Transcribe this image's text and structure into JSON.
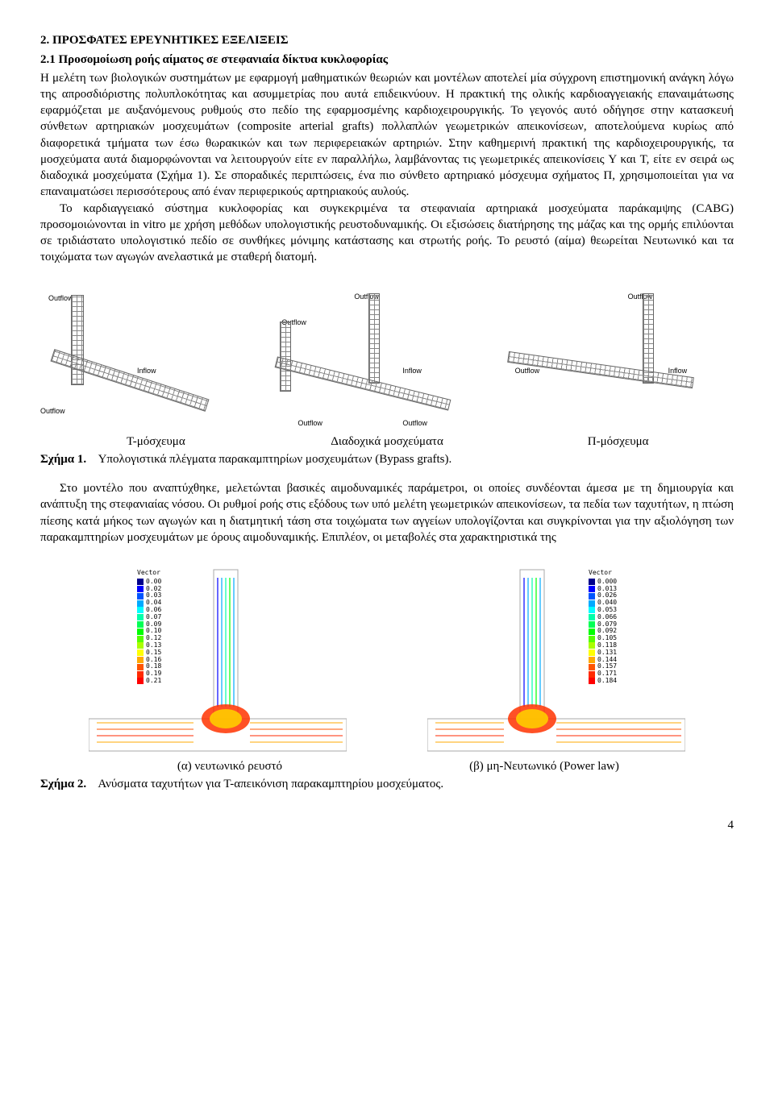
{
  "section": {
    "title": "2. ΠΡΟΣΦΑΤΕΣ ΕΡΕΥΝΗΤΙΚΕΣ ΕΞΕΛΙΞΕΙΣ",
    "subsection_title": "2.1 Προσομοίωση ροής αίματος σε στεφανιαία δίκτυα κυκλοφορίας"
  },
  "para1": "Η μελέτη των βιολογικών συστημάτων με εφαρμογή μαθηματικών θεωριών και μοντέλων αποτελεί μία σύγχρονη επιστημονική ανάγκη λόγω της απροσδιόριστης πολυπλοκότητας και ασυμμετρίας που αυτά επιδεικνύουν. Η πρακτική της ολικής καρδιοαγγειακής επαναιμάτωσης εφαρμόζεται με αυξανόμενους ρυθμούς στο πεδίο της εφαρμοσμένης καρδιοχειρουργικής. Το γεγονός αυτό οδήγησε στην κατασκευή σύνθετων αρτηριακών μοσχευμάτων (composite arterial grafts) πολλαπλών γεωμετρικών απεικονίσεων, αποτελούμενα κυρίως από διαφορετικά τμήματα των έσω θωρακικών και των περιφερειακών αρτηριών. Στην καθημερινή πρακτική της καρδιοχειρουργικής, τα μοσχεύματα αυτά διαμορφώνονται να λειτουργούν είτε εν παραλλήλω, λαμβάνοντας τις γεωμετρικές απεικονίσεις Y και T, είτε εν σειρά ως διαδοχικά μοσχεύματα (Σχήμα 1). Σε σποραδικές περιπτώσεις, ένα πιο σύνθετο αρτηριακό μόσχευμα σχήματος Π, χρησιμοποιείται για να επαναιματώσει περισσότερους από έναν περιφερικούς αρτηριακούς αυλούς.",
  "para2": "Το καρδιαγγειακό σύστημα κυκλοφορίας και συγκεκριμένα τα στεφανιαία αρτηριακά μοσχεύματα παράκαμψης (CABG) προσομοιώνονται in vitro με χρήση μεθόδων υπολογιστικής ρευστοδυναμικής. Οι εξισώσεις διατήρησης της μάζας και της ορμής επιλύονται σε τριδιάστατο υπολογιστικό πεδίο σε συνθήκες μόνιμης κατάστασης και στρωτής ροής. Το ρευστό (αίμα) θεωρείται Νευτωνικό και τα τοιχώματα των αγωγών ανελαστικά με σταθερή διατομή.",
  "fig1": {
    "labels": {
      "outflow": "Outflow",
      "inflow": "Inflow"
    },
    "captions": {
      "a": "T-μόσχευμα",
      "b": "Διαδοχικά μοσχεύματα",
      "c": "Π-μόσχευμα"
    },
    "caption_prefix": "Σχήμα 1.",
    "caption_text": "Υπολογιστικά πλέγματα παρακαμπτηρίων μοσχευμάτων (Bypass grafts)."
  },
  "para3": "Στο μοντέλο που αναπτύχθηκε, μελετώνται βασικές αιμοδυναμικές παράμετροι, οι οποίες συνδέονται άμεσα με τη δημιουργία και ανάπτυξη της στεφανιαίας νόσου. Οι ρυθμοί ροής στις εξόδους των υπό μελέτη γεωμετρικών απεικονίσεων, τα πεδία των ταχυτήτων, η πτώση πίεσης κατά μήκος των αγωγών και η διατμητική τάση στα τοιχώματα των αγγείων υπολογίζονται και συγκρίνονται για την αξιολόγηση των παρακαμπτηρίων μοσχευμάτων με όρους αιμοδυναμικής. Επιπλέον, οι μεταβολές στα χαρακτηριστικά της",
  "fig2": {
    "left": {
      "legend_title": "Vector",
      "values": [
        "0.00",
        "0.02",
        "0.03",
        "0.04",
        "0.06",
        "0.07",
        "0.09",
        "0.10",
        "0.12",
        "0.13",
        "0.15",
        "0.16",
        "0.18",
        "0.19",
        "0.21"
      ],
      "colors": [
        "#00008b",
        "#0000ff",
        "#0055ff",
        "#00aaff",
        "#00ffff",
        "#00ffaa",
        "#00ff55",
        "#00ff00",
        "#55ff00",
        "#aaff00",
        "#ffff00",
        "#ffaa00",
        "#ff5500",
        "#ff2a00",
        "#ff0000"
      ],
      "caption": "(α) νευτωνικό ρευστό"
    },
    "right": {
      "legend_title": "Vector",
      "values": [
        "0.000",
        "0.013",
        "0.026",
        "0.040",
        "0.053",
        "0.066",
        "0.079",
        "0.092",
        "0.105",
        "0.118",
        "0.131",
        "0.144",
        "0.157",
        "0.171",
        "0.184"
      ],
      "colors": [
        "#00008b",
        "#0000ff",
        "#0055ff",
        "#00aaff",
        "#00ffff",
        "#00ffaa",
        "#00ff55",
        "#00ff00",
        "#55ff00",
        "#aaff00",
        "#ffff00",
        "#ffaa00",
        "#ff5500",
        "#ff2a00",
        "#ff0000"
      ],
      "caption": "(β) μη-Νευτωνικό (Power law)"
    },
    "caption_prefix": "Σχήμα 2.",
    "caption_text": "Ανύσματα ταχυτήτων για T-απεικόνιση παρακαμπτηρίου μοσχεύματος."
  },
  "pagenum": "4"
}
